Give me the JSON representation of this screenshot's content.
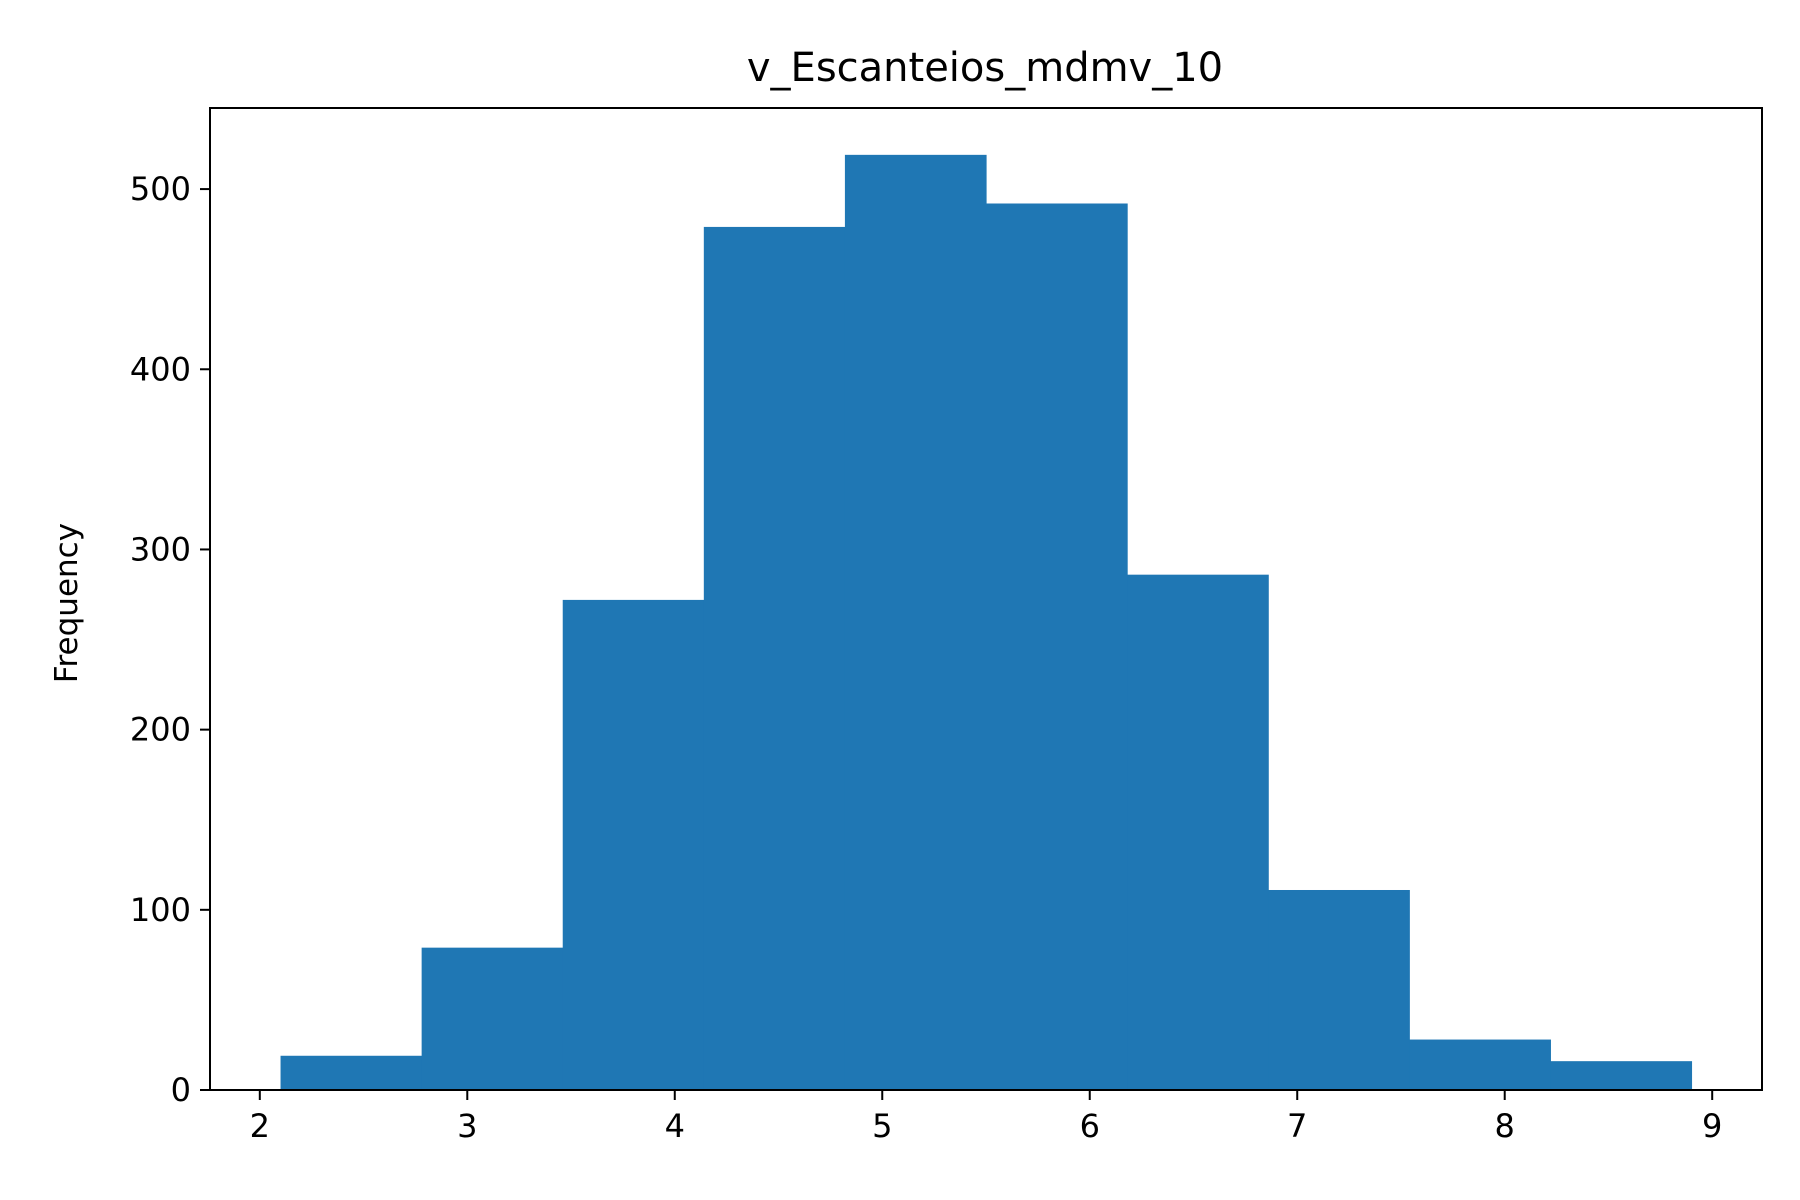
{
  "chart_data": {
    "type": "bar",
    "title": "v_Escanteios_mdmv_10",
    "xlabel": "",
    "ylabel": "Frequency",
    "color": "#1f77b4",
    "bin_edges": [
      2.1,
      2.78,
      3.46,
      4.14,
      4.82,
      5.5,
      6.18,
      6.86,
      7.54,
      8.22,
      8.9
    ],
    "values": [
      19,
      79,
      272,
      479,
      519,
      492,
      286,
      111,
      28,
      16
    ],
    "xlim": [
      1.76,
      9.24
    ],
    "ylim": [
      0,
      545
    ],
    "x_ticks": [
      "2",
      "3",
      "4",
      "5",
      "6",
      "7",
      "8",
      "9"
    ],
    "y_ticks": [
      "0",
      "100",
      "200",
      "300",
      "400",
      "500"
    ],
    "grid": false,
    "legend": "none"
  }
}
